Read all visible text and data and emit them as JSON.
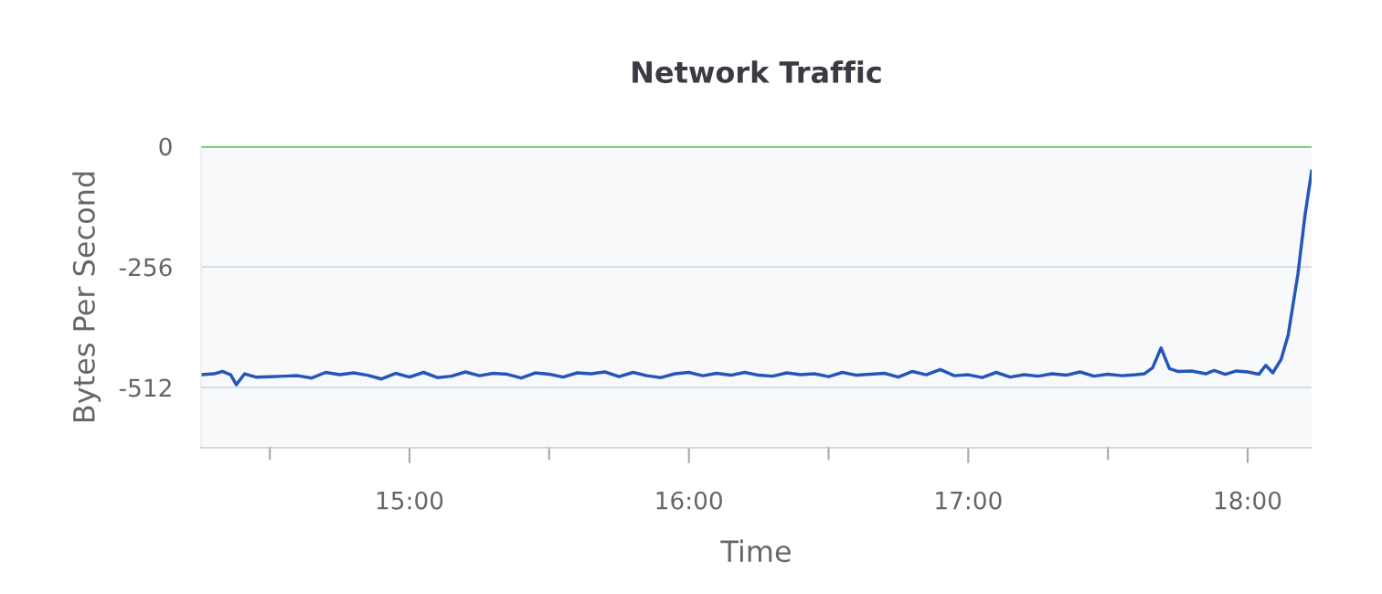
{
  "chart_data": {
    "type": "line",
    "title": "Network Traffic",
    "xlabel": "Time",
    "ylabel": "Bytes Per Second",
    "xlim": [
      14.254,
      18.229
    ],
    "xticks": [
      {
        "value": 14.5,
        "label": null
      },
      {
        "value": 15,
        "label": "15:00"
      },
      {
        "value": 15.5,
        "label": null
      },
      {
        "value": 16,
        "label": "16:00"
      },
      {
        "value": 16.5,
        "label": null
      },
      {
        "value": 17,
        "label": "17:00"
      },
      {
        "value": 17.5,
        "label": null
      },
      {
        "value": 18,
        "label": "18:00"
      }
    ],
    "ylim": [
      -640,
      0
    ],
    "yticks": [
      0,
      -256,
      -512
    ],
    "grid": "y",
    "marker": "none",
    "line_style": "solid",
    "series": [
      {
        "color": "#6cc36a",
        "x": [
          14.254,
          15.0,
          16.0,
          17.0,
          18.0,
          18.229
        ],
        "values": [
          0,
          0,
          0,
          0,
          0,
          0
        ]
      },
      {
        "color": "#2356b8",
        "x": [
          14.254,
          14.3,
          14.33,
          14.36,
          14.38,
          14.41,
          14.45,
          14.5,
          14.55,
          14.6,
          14.65,
          14.7,
          14.75,
          14.8,
          14.85,
          14.9,
          14.95,
          15.0,
          15.05,
          15.1,
          15.15,
          15.2,
          15.25,
          15.3,
          15.35,
          15.4,
          15.45,
          15.5,
          15.55,
          15.6,
          15.65,
          15.7,
          15.75,
          15.8,
          15.85,
          15.9,
          15.95,
          16.0,
          16.05,
          16.1,
          16.15,
          16.2,
          16.25,
          16.3,
          16.35,
          16.4,
          16.45,
          16.5,
          16.55,
          16.6,
          16.65,
          16.7,
          16.75,
          16.8,
          16.85,
          16.9,
          16.95,
          17.0,
          17.05,
          17.1,
          17.15,
          17.2,
          17.25,
          17.3,
          17.35,
          17.4,
          17.45,
          17.5,
          17.55,
          17.6,
          17.63,
          17.66,
          17.69,
          17.72,
          17.75,
          17.8,
          17.85,
          17.88,
          17.92,
          17.96,
          18.0,
          18.04,
          18.065,
          18.09,
          18.12,
          18.145,
          18.18,
          18.205,
          18.229
        ],
        "values": [
          -485,
          -483,
          -478,
          -485,
          -506,
          -483,
          -490,
          -489,
          -488,
          -487,
          -492,
          -480,
          -485,
          -481,
          -486,
          -494,
          -482,
          -490,
          -480,
          -491,
          -488,
          -479,
          -487,
          -482,
          -484,
          -492,
          -481,
          -484,
          -490,
          -481,
          -483,
          -479,
          -489,
          -480,
          -487,
          -491,
          -483,
          -480,
          -487,
          -482,
          -486,
          -480,
          -486,
          -488,
          -481,
          -485,
          -483,
          -489,
          -480,
          -486,
          -484,
          -482,
          -490,
          -478,
          -485,
          -474,
          -487,
          -485,
          -491,
          -480,
          -490,
          -485,
          -488,
          -483,
          -486,
          -479,
          -488,
          -484,
          -487,
          -485,
          -483,
          -470,
          -428,
          -472,
          -478,
          -477,
          -483,
          -476,
          -484,
          -477,
          -479,
          -484,
          -465,
          -481,
          -452,
          -401,
          -271,
          -148,
          -53
        ]
      }
    ]
  }
}
